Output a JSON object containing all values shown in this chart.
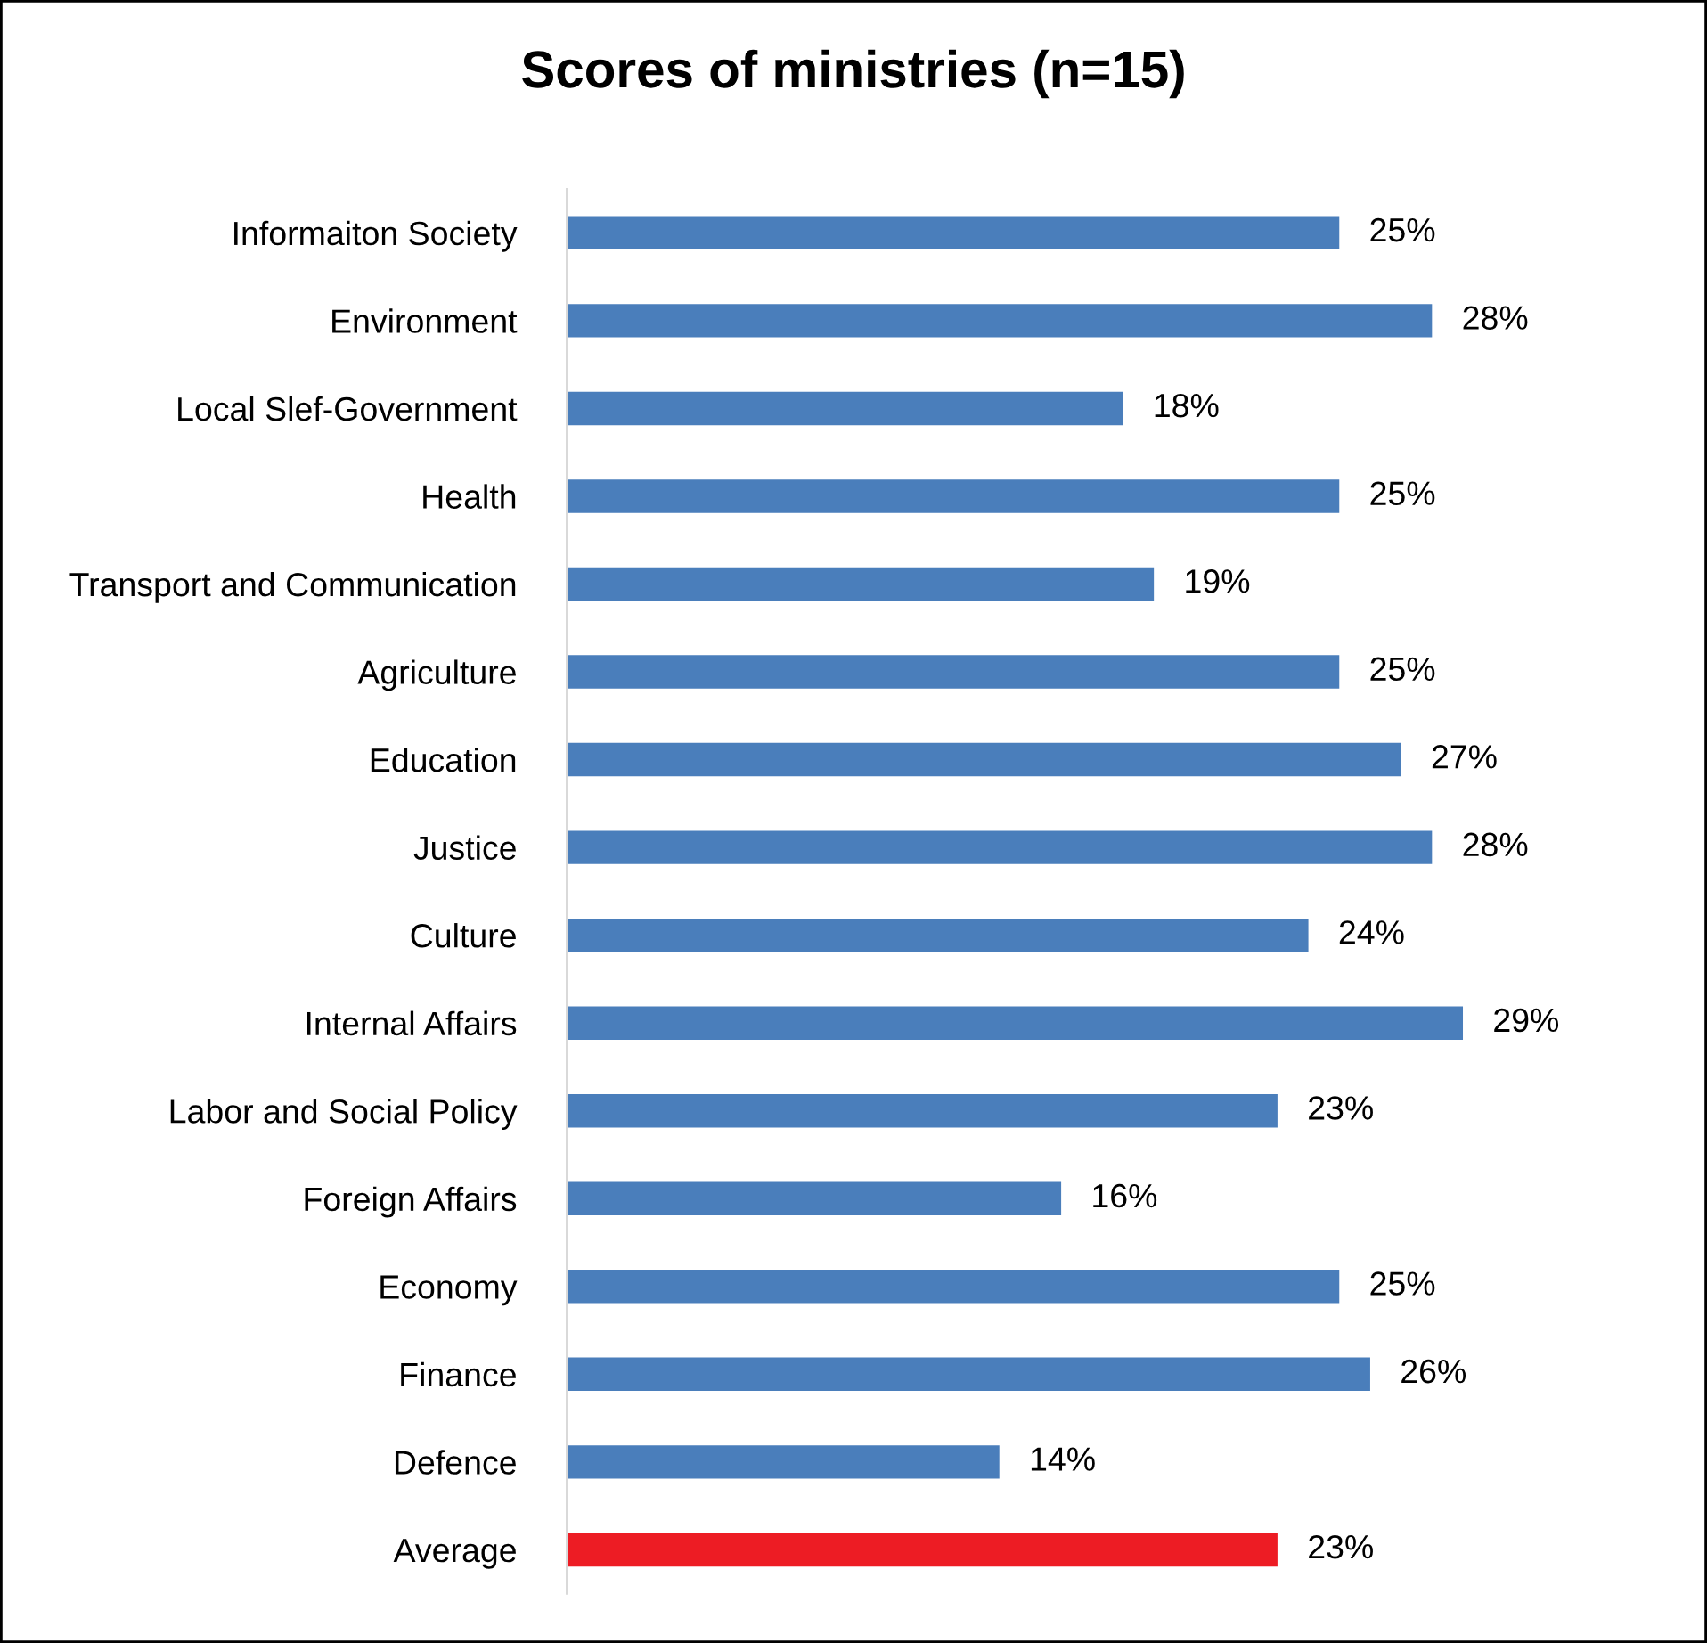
{
  "chart_data": {
    "type": "bar",
    "orientation": "horizontal",
    "title": "Scores of ministries (n=15)",
    "categories": [
      "Informaiton Society",
      "Environment",
      "Local Slef-Government",
      "Health",
      "Transport and Communication",
      "Agriculture",
      "Education",
      "Justice",
      "Culture",
      "Internal Affairs",
      "Labor and Social Policy",
      "Foreign Affairs",
      "Economy",
      "Finance",
      "Defence",
      "Average"
    ],
    "values": [
      25,
      28,
      18,
      25,
      19,
      25,
      27,
      28,
      24,
      29,
      23,
      16,
      25,
      26,
      14,
      23
    ],
    "value_labels": [
      "25%",
      "28%",
      "18%",
      "25%",
      "19%",
      "25%",
      "27%",
      "28%",
      "24%",
      "29%",
      "23%",
      "16%",
      "25%",
      "26%",
      "14%",
      "23%"
    ],
    "colors": [
      "#4a7ebb",
      "#4a7ebb",
      "#4a7ebb",
      "#4a7ebb",
      "#4a7ebb",
      "#4a7ebb",
      "#4a7ebb",
      "#4a7ebb",
      "#4a7ebb",
      "#4a7ebb",
      "#4a7ebb",
      "#4a7ebb",
      "#4a7ebb",
      "#4a7ebb",
      "#4a7ebb",
      "#ed1c24"
    ],
    "grid": false,
    "legend": false
  }
}
